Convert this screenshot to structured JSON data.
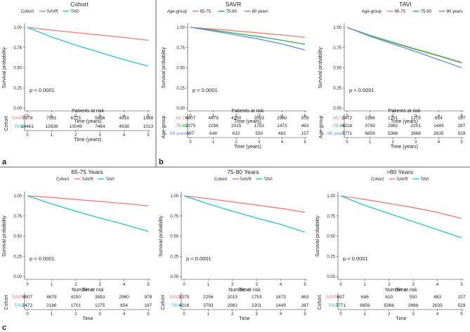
{
  "figure": {
    "panel_letters": [
      "a",
      "b",
      "c"
    ],
    "survival_ylabel": "Survival probability",
    "x_label_years": "Time (years)",
    "x_label_time": "Time",
    "y_ticks": [
      "0.00",
      "0.25",
      "0.50",
      "0.75",
      "1.00"
    ],
    "x_ticks": [
      "0",
      "1",
      "2",
      "3",
      "4",
      "5"
    ],
    "pvalue": "p < 0.0001",
    "patients_at_risk": "Patients at risk",
    "number_at_risk": "Number at risk",
    "colors": {
      "savr": "#f07a6f",
      "tavi": "#20c4d4",
      "g6575": "#f07a6f",
      "g7580": "#2db34a",
      "g80": "#5b8ff0"
    }
  },
  "chart_data": [
    {
      "id": "cohort",
      "type": "line",
      "title": "Cohort",
      "legend_title": "Cohort",
      "xlabel": "Time (years)",
      "ylabel": "Survival probability",
      "xlim": [
        0,
        5
      ],
      "ylim": [
        0,
        1
      ],
      "x": [
        0,
        1,
        2,
        3,
        4,
        5
      ],
      "series": [
        {
          "name": "SAVR",
          "color": "#f07a6f",
          "values": [
            1.0,
            0.965,
            0.935,
            0.905,
            0.875,
            0.84
          ]
        },
        {
          "name": "TAVI",
          "color": "#20c4d4",
          "values": [
            1.0,
            0.88,
            0.78,
            0.69,
            0.6,
            0.52
          ]
        }
      ],
      "risk_table": {
        "title": "Patients at risk",
        "row_label": "Cohort",
        "rows": [
          {
            "name": "SAVR",
            "color": "#f07a6f",
            "values": [
              "7879",
              "7581",
              "6775",
              "5896",
              "4916",
              "1598"
            ]
          },
          {
            "name": "TAVI",
            "color": "#20c4d4",
            "values": [
              "14461",
              "12838",
              "10049",
              "7464",
              "4938",
              "1013"
            ]
          }
        ]
      }
    },
    {
      "id": "savr-age",
      "type": "line",
      "title": "SAVR",
      "legend_title": "Age-group",
      "xlabel": "Time (years)",
      "ylabel": "Survival probability",
      "xlim": [
        0,
        5
      ],
      "ylim": [
        0,
        1
      ],
      "x": [
        0,
        1,
        2,
        3,
        4,
        5
      ],
      "series": [
        {
          "name": "65-75",
          "color": "#f07a6f",
          "values": [
            1.0,
            0.98,
            0.955,
            0.93,
            0.905,
            0.875
          ]
        },
        {
          "name": "75-80",
          "color": "#2db34a",
          "values": [
            1.0,
            0.965,
            0.925,
            0.885,
            0.84,
            0.79
          ]
        },
        {
          "name": "80 years",
          "color": "#5b8ff0",
          "values": [
            1.0,
            0.955,
            0.905,
            0.855,
            0.795,
            0.72
          ]
        }
      ],
      "risk_table": {
        "title": "Patients at risk",
        "row_label": "Age-group",
        "rows": [
          {
            "name": "65-75",
            "color": "#f07a6f",
            "values": [
              "4807",
              "4679",
              "4150",
              "3593",
              "2960",
              "978"
            ]
          },
          {
            "name": "75-80",
            "color": "#2db34a",
            "values": [
              "2375",
              "2256",
              "2015",
              "1753",
              "1473",
              "463"
            ]
          },
          {
            "name": "80 years",
            "color": "#5b8ff0",
            "values": [
              "697",
              "646",
              "610",
              "550",
              "483",
              "157"
            ]
          }
        ]
      }
    },
    {
      "id": "tavi-age",
      "type": "line",
      "title": "TAVI",
      "legend_title": "Age-group",
      "xlabel": "Time (years)",
      "ylabel": "Survival probability",
      "xlim": [
        0,
        5
      ],
      "ylim": [
        0,
        1
      ],
      "x": [
        0,
        1,
        2,
        3,
        4,
        5
      ],
      "series": [
        {
          "name": "65-75",
          "color": "#f07a6f",
          "values": [
            1.0,
            0.9,
            0.81,
            0.725,
            0.645,
            0.56
          ]
        },
        {
          "name": "75-80",
          "color": "#2db34a",
          "values": [
            1.0,
            0.9,
            0.815,
            0.73,
            0.65,
            0.565
          ]
        },
        {
          "name": "80 years",
          "color": "#5b8ff0",
          "values": [
            1.0,
            0.89,
            0.795,
            0.7,
            0.6,
            0.5
          ]
        }
      ],
      "risk_table": {
        "title": "Patients at risk",
        "row_label": "Age-group",
        "rows": [
          {
            "name": "65-75",
            "color": "#f07a6f",
            "values": [
              "2472",
              "2186",
              "1701",
              "1275",
              "854",
              "197"
            ]
          },
          {
            "name": "75-80",
            "color": "#2db34a",
            "values": [
              "4218",
              "3793",
              "2982",
              "2201",
              "1449",
              "287"
            ]
          },
          {
            "name": "80 years",
            "color": "#5b8ff0",
            "values": [
              "7771",
              "6859",
              "5366",
              "3988",
              "2635",
              "529"
            ]
          }
        ]
      }
    },
    {
      "id": "age-65-75",
      "type": "line",
      "title": "65-75 Years",
      "legend_title": "Cohort",
      "xlabel": "Time",
      "ylabel": "Survival probability",
      "xlim": [
        0,
        5
      ],
      "ylim": [
        0,
        1
      ],
      "x": [
        0,
        1,
        2,
        3,
        4,
        5
      ],
      "series": [
        {
          "name": "SAVR",
          "color": "#f07a6f",
          "values": [
            1.0,
            0.98,
            0.955,
            0.93,
            0.905,
            0.875
          ]
        },
        {
          "name": "TAVI",
          "color": "#20c4d4",
          "values": [
            1.0,
            0.9,
            0.81,
            0.725,
            0.645,
            0.56
          ]
        }
      ],
      "risk_table": {
        "title": "Number at risk",
        "row_label": "Cohort",
        "rows": [
          {
            "name": "SAVR",
            "color": "#f07a6f",
            "values": [
              "4807",
              "4679",
              "4150",
              "3593",
              "2960",
              "978"
            ]
          },
          {
            "name": "TAVI",
            "color": "#20c4d4",
            "values": [
              "2472",
              "2186",
              "1701",
              "1275",
              "854",
              "197"
            ]
          }
        ]
      }
    },
    {
      "id": "age-75-80",
      "type": "line",
      "title": "75-80 Years",
      "legend_title": "Cohort",
      "xlabel": "Time",
      "ylabel": "Survival probability",
      "xlim": [
        0,
        5
      ],
      "ylim": [
        0,
        1
      ],
      "x": [
        0,
        1,
        2,
        3,
        4,
        5
      ],
      "series": [
        {
          "name": "SAVR",
          "color": "#f07a6f",
          "values": [
            1.0,
            0.965,
            0.925,
            0.885,
            0.845,
            0.795
          ]
        },
        {
          "name": "TAVI",
          "color": "#20c4d4",
          "values": [
            1.0,
            0.9,
            0.81,
            0.725,
            0.645,
            0.55
          ]
        }
      ],
      "risk_table": {
        "title": "Number at risk",
        "row_label": "Cohort",
        "rows": [
          {
            "name": "SAVR",
            "color": "#f07a6f",
            "values": [
              "2375",
              "2256",
              "2015",
              "1753",
              "1473",
              "463"
            ]
          },
          {
            "name": "TAVI",
            "color": "#20c4d4",
            "values": [
              "4218",
              "3793",
              "2982",
              "2201",
              "1449",
              "287"
            ]
          }
        ]
      }
    },
    {
      "id": "age-80",
      "type": "line",
      "title": ">80 Years",
      "legend_title": "Cohort",
      "xlabel": "Time",
      "ylabel": "Survival probability",
      "xlim": [
        0,
        5
      ],
      "ylim": [
        0,
        1
      ],
      "x": [
        0,
        1,
        2,
        3,
        4,
        5
      ],
      "series": [
        {
          "name": "SAVR",
          "color": "#f07a6f",
          "values": [
            1.0,
            0.955,
            0.905,
            0.855,
            0.795,
            0.72
          ]
        },
        {
          "name": "TAVI",
          "color": "#20c4d4",
          "values": [
            1.0,
            0.88,
            0.78,
            0.68,
            0.58,
            0.48
          ]
        }
      ],
      "risk_table": {
        "title": "Number at risk",
        "row_label": "Cohort",
        "rows": [
          {
            "name": "SAVR",
            "color": "#f07a6f",
            "values": [
              "697",
              "646",
              "610",
              "550",
              "483",
              "157"
            ]
          },
          {
            "name": "TAVI",
            "color": "#20c4d4",
            "values": [
              "7771",
              "6859",
              "5366",
              "3988",
              "2635",
              "529"
            ]
          }
        ]
      }
    }
  ]
}
